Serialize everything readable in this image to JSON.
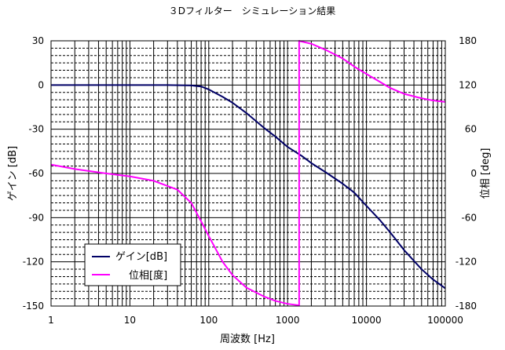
{
  "chart_data": {
    "type": "line",
    "title": "３Dフィルター　シミュレーション結果",
    "xlabel": "周波数 [Hz]",
    "ylabel_left": "ゲイン [dB]",
    "ylabel_right": "位相 [deg]",
    "x_scale": "log",
    "xlim": [
      1,
      100000
    ],
    "ylim_left": [
      -150,
      30
    ],
    "ylim_right": [
      -180,
      180
    ],
    "x_ticks": [
      "1",
      "10",
      "100",
      "1000",
      "10000",
      "100000"
    ],
    "y_ticks_left": [
      "30",
      "0",
      "-30",
      "-60",
      "-90",
      "-120",
      "-150"
    ],
    "y_ticks_right": [
      "180",
      "120",
      "60",
      "0",
      "-60",
      "-120",
      "-180"
    ],
    "grid": true,
    "legend_position": "lower-left",
    "series": [
      {
        "name": "ゲイン[dB]",
        "axis": "left",
        "color": "#000066",
        "points": [
          [
            1,
            0
          ],
          [
            10,
            0
          ],
          [
            30,
            0
          ],
          [
            60,
            -0.3
          ],
          [
            80,
            -1
          ],
          [
            100,
            -3
          ],
          [
            150,
            -8
          ],
          [
            200,
            -12
          ],
          [
            300,
            -19
          ],
          [
            500,
            -29
          ],
          [
            700,
            -35
          ],
          [
            1000,
            -42
          ],
          [
            1500,
            -48
          ],
          [
            2000,
            -53
          ],
          [
            3000,
            -59
          ],
          [
            5000,
            -67
          ],
          [
            7000,
            -73
          ],
          [
            10000,
            -82
          ],
          [
            15000,
            -92
          ],
          [
            20000,
            -100
          ],
          [
            30000,
            -112
          ],
          [
            50000,
            -125
          ],
          [
            70000,
            -132
          ],
          [
            100000,
            -138
          ]
        ]
      },
      {
        "name": "位相[度]",
        "axis": "right",
        "color": "#ff00ff",
        "points": [
          [
            1,
            12
          ],
          [
            2,
            6
          ],
          [
            5,
            0
          ],
          [
            10,
            -4
          ],
          [
            20,
            -10
          ],
          [
            40,
            -22
          ],
          [
            60,
            -40
          ],
          [
            80,
            -65
          ],
          [
            100,
            -85
          ],
          [
            150,
            -120
          ],
          [
            200,
            -138
          ],
          [
            300,
            -155
          ],
          [
            500,
            -167
          ],
          [
            700,
            -173
          ],
          [
            1000,
            -177
          ],
          [
            1400,
            -179
          ],
          [
            1400.1,
            180
          ],
          [
            1500,
            179
          ],
          [
            2000,
            176
          ],
          [
            3000,
            168
          ],
          [
            5000,
            156
          ],
          [
            7000,
            145
          ],
          [
            10000,
            135
          ],
          [
            15000,
            124
          ],
          [
            20000,
            116
          ],
          [
            30000,
            108
          ],
          [
            50000,
            102
          ],
          [
            70000,
            99
          ],
          [
            100000,
            97
          ]
        ]
      }
    ]
  }
}
